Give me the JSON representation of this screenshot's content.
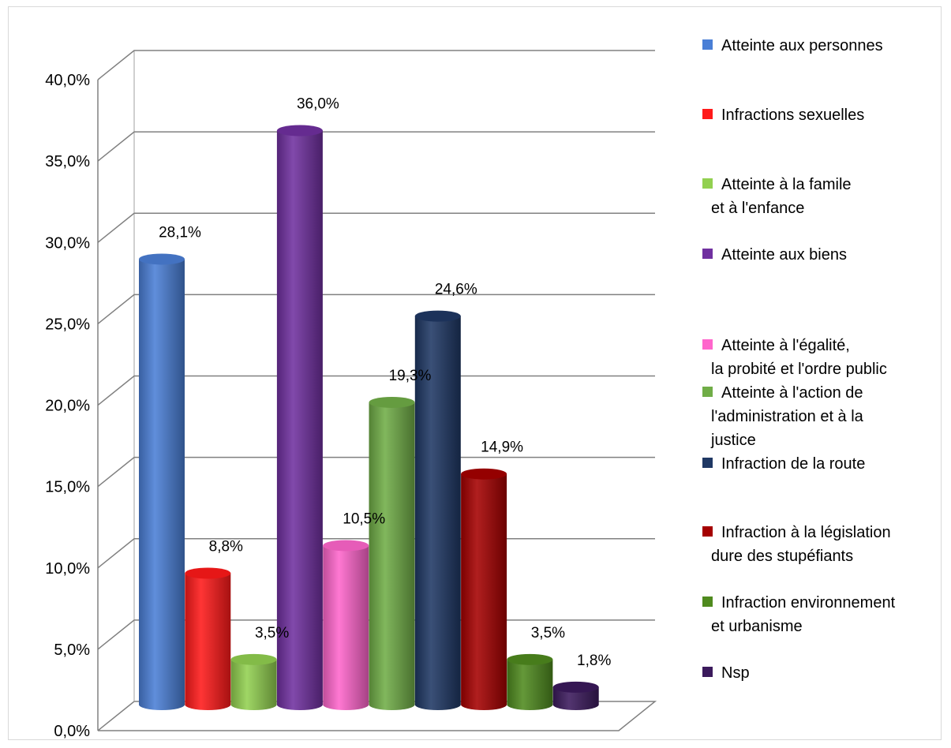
{
  "chart_data": {
    "type": "bar",
    "title": "",
    "xlabel": "",
    "ylabel": "",
    "ylim": [
      0,
      40
    ],
    "ytick_values": [
      0,
      5,
      10,
      15,
      20,
      25,
      30,
      35,
      40
    ],
    "ytick_labels": [
      "0,0%",
      "5,0%",
      "10,0%",
      "15,0%",
      "20,0%",
      "25,0%",
      "30,0%",
      "35,0%",
      "40,0%"
    ],
    "grid": true,
    "legend_position": "right",
    "series": [
      {
        "name": [
          "Atteinte aux personnes"
        ],
        "value": 28.1,
        "label": "28,1%",
        "color": "#4a7fd6"
      },
      {
        "name": [
          "Infractions sexuelles"
        ],
        "value": 8.8,
        "label": "8,8%",
        "color": "#ff1a1a"
      },
      {
        "name": [
          "Atteinte à la famile",
          "et à l'enfance"
        ],
        "value": 3.5,
        "label": "3,5%",
        "color": "#92d050"
      },
      {
        "name": [
          "Atteinte aux biens"
        ],
        "value": 36.0,
        "label": "36,0%",
        "color": "#7030a0"
      },
      {
        "name": [
          "Atteinte à l'égalité,",
          "la probité et l'ordre public"
        ],
        "value": 10.5,
        "label": "10,5%",
        "color": "#ff66cc"
      },
      {
        "name": [
          "Atteinte à l'action de",
          "l'administration et à la",
          "justice"
        ],
        "value": 19.3,
        "label": "19,3%",
        "color": "#70ad47"
      },
      {
        "name": [
          "Infraction de la route"
        ],
        "value": 24.6,
        "label": "24,6%",
        "color": "#1f3864"
      },
      {
        "name": [
          "Infraction à la législation",
          "dure des stupéfiants"
        ],
        "value": 14.9,
        "label": "14,9%",
        "color": "#a50000"
      },
      {
        "name": [
          "Infraction environnement",
          "et urbanisme"
        ],
        "value": 3.5,
        "label": "3,5%",
        "color": "#4f8a1e"
      },
      {
        "name": [
          "Nsp"
        ],
        "value": 1.8,
        "label": "1,8%",
        "color": "#3b1a5c"
      }
    ]
  }
}
